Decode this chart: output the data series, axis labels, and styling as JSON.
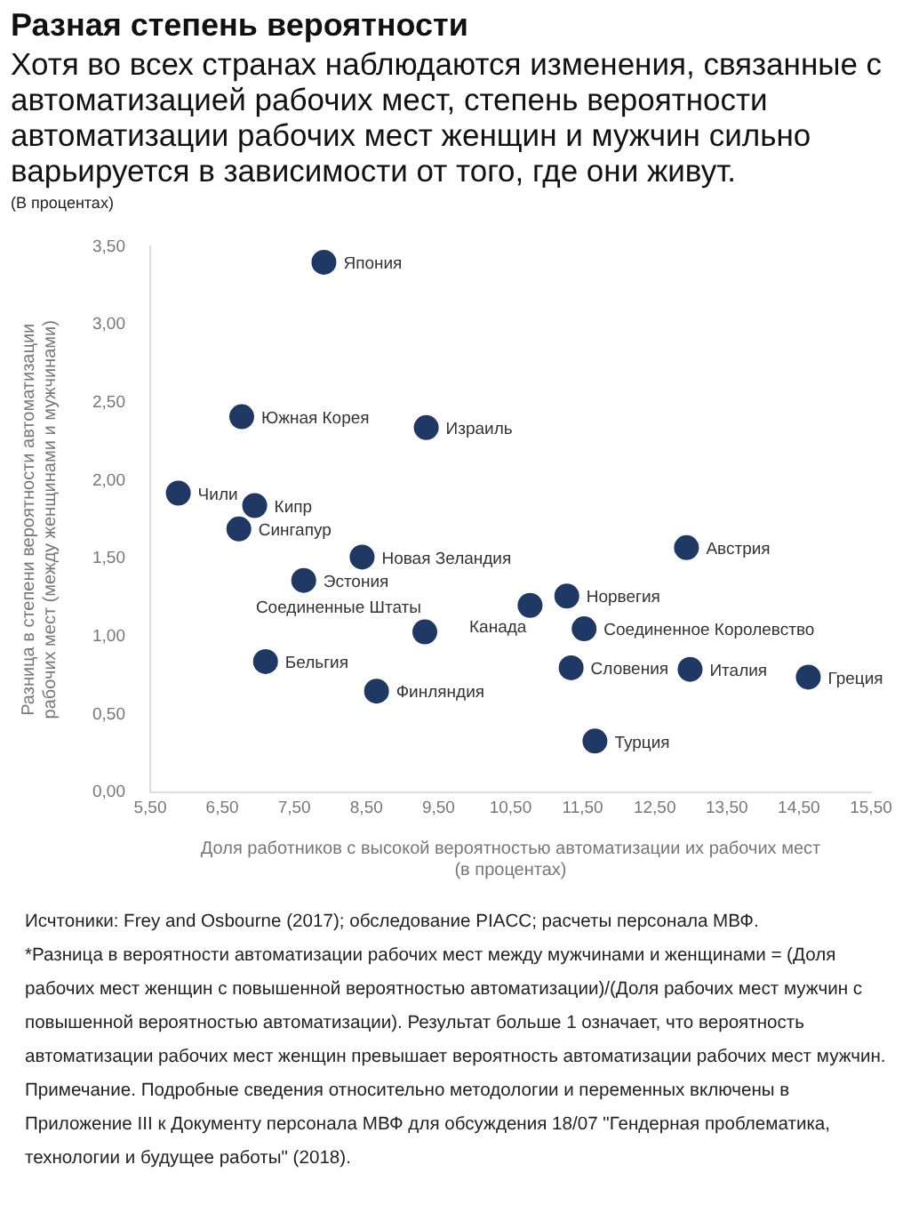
{
  "chart_data": {
    "type": "scatter",
    "title": "Разная степень вероятности",
    "subtitle": "Хотя во всех странах наблюдаются изменения, связанные с автоматизацией рабочих мест, степень вероятности автоматизации рабочих мест женщин и мужчин сильно варьируется в зависимости от того, где они живут.",
    "xlabel": "Доля работников с высокой вероятностью автоматизации их рабочих мест\n(в процентах)",
    "ylabel": "Разница в степени вероятности автоматизации рабочих мест (между женщинами и мужчинами)",
    "series": [
      {
        "color": "#1f3864",
        "x": [
          7.91,
          6.77,
          9.33,
          5.89,
          6.95,
          6.73,
          8.44,
          12.94,
          7.63,
          11.28,
          10.77,
          11.52,
          9.31,
          7.1,
          11.34,
          12.99,
          14.63,
          8.64,
          11.67
        ],
        "values": [
          3.4,
          2.41,
          2.34,
          1.92,
          1.84,
          1.69,
          1.51,
          1.57,
          1.36,
          1.26,
          1.2,
          1.05,
          1.03,
          0.84,
          0.8,
          0.79,
          0.74,
          0.65,
          0.33
        ]
      }
    ],
    "marker": "circle",
    "grid": false,
    "legend": false,
    "xlim": [
      5.5,
      15.5
    ],
    "xticks": [
      {
        "value": 5.5,
        "label": "5,50"
      },
      {
        "value": 6.5,
        "label": "6,50"
      },
      {
        "value": 7.5,
        "label": "7,50"
      },
      {
        "value": 8.5,
        "label": "8,50"
      },
      {
        "value": 9.5,
        "label": "9,50"
      },
      {
        "value": 10.5,
        "label": "10,50"
      },
      {
        "value": 11.5,
        "label": "11,50"
      },
      {
        "value": 12.5,
        "label": "12,50"
      },
      {
        "value": 13.5,
        "label": "13,50"
      },
      {
        "value": 14.5,
        "label": "14,50"
      },
      {
        "value": 15.5,
        "label": "15,50"
      }
    ],
    "ylim": [
      0,
      3.5
    ],
    "yticks": [
      {
        "value": 0,
        "label": "0,00"
      },
      {
        "value": 0.5,
        "label": "0,50"
      },
      {
        "value": 1,
        "label": "1,00"
      },
      {
        "value": 1.5,
        "label": "1,50"
      },
      {
        "value": 2,
        "label": "2,00"
      },
      {
        "value": 2.5,
        "label": "2,50"
      },
      {
        "value": 3,
        "label": "3,00"
      },
      {
        "value": 3.5,
        "label": "3,50"
      }
    ],
    "annotations": [
      {
        "text": "Япония",
        "x": 7.91,
        "y": 3.4
      },
      {
        "text": "Южная Корея",
        "x": 6.77,
        "y": 2.41
      },
      {
        "text": "Израиль",
        "x": 9.33,
        "y": 2.34
      },
      {
        "text": "Чили",
        "x": 5.89,
        "y": 1.92
      },
      {
        "text": "Кипр",
        "x": 6.95,
        "y": 1.84
      },
      {
        "text": "Сингапур",
        "x": 6.73,
        "y": 1.69
      },
      {
        "text": "Новая Зеландия",
        "x": 8.44,
        "y": 1.51
      },
      {
        "text": "Австрия",
        "x": 12.94,
        "y": 1.57
      },
      {
        "text": "Эстония",
        "x": 7.63,
        "y": 1.36
      },
      {
        "text": "Норвегия",
        "x": 11.28,
        "y": 1.26
      },
      {
        "text": "Канада",
        "x": 10.77,
        "y": 1.2
      },
      {
        "text": "Соединенное Королевство",
        "x": 11.52,
        "y": 1.05
      },
      {
        "text": "Соединенные Штаты",
        "x": 9.31,
        "y": 1.03
      },
      {
        "text": "Бельгия",
        "x": 7.1,
        "y": 0.84
      },
      {
        "text": "Словения",
        "x": 11.34,
        "y": 0.8
      },
      {
        "text": "Италия",
        "x": 12.99,
        "y": 0.79
      },
      {
        "text": "Греция",
        "x": 14.63,
        "y": 0.74
      },
      {
        "text": "Финляндия",
        "x": 8.64,
        "y": 0.65
      },
      {
        "text": "Турция",
        "x": 11.67,
        "y": 0.33
      },
      "(В процентах)",
      "Исчтоники: Frey and Osbourne (2017); обследование PIACC; расчеты персонала МВФ.",
      "*Разница в вероятности автоматизации рабочих мест между мужчинами и женщинами = (Доля рабочих мест женщин с повышенной вероятностью автоматизации)/(Доля рабочих мест мужчин с повышенной вероятностью автоматизации). Результат больше 1 означает, что вероятность автоматизации рабочих мест женщин превышает вероятность автоматизации рабочих мест мужчин.",
      "Примечание. Подробные сведения относительно методологии и переменных включены в Приложение III к Документу персонала МВФ для обсуждения 18/07 \"Гендерная проблематика, технологии и будущее работы\" (2018)."
    ]
  }
}
